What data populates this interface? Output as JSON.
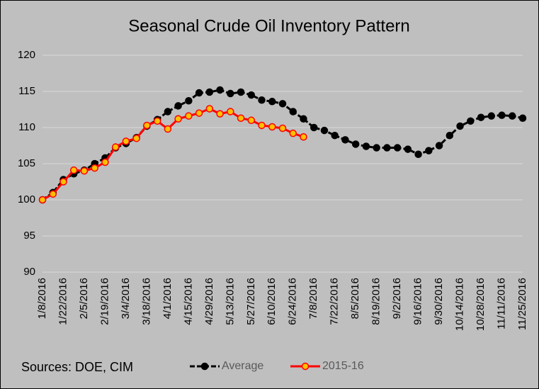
{
  "chart_data": {
    "type": "line",
    "title": "Seasonal Crude Oil Inventory Pattern",
    "annotation": "Sources:  DOE, CIM",
    "categories": [
      "1/8/2016",
      null,
      "1/22/2016",
      null,
      "2/5/2016",
      null,
      "2/19/2016",
      null,
      "3/4/2016",
      null,
      "3/18/2016",
      null,
      "4/1/2016",
      null,
      "4/15/2016",
      null,
      "4/29/2016",
      null,
      "5/13/2016",
      null,
      "5/27/2016",
      null,
      "6/10/2016",
      null,
      "6/24/2016",
      null,
      "7/8/2016",
      null,
      "7/22/2016",
      null,
      "8/5/2016",
      null,
      "8/19/2016",
      null,
      "9/2/2016",
      null,
      "9/16/2016",
      null,
      "9/30/2016",
      null,
      "10/14/2016",
      null,
      "10/28/2016",
      null,
      "11/11/2016",
      null,
      "11/25/2016"
    ],
    "series": [
      {
        "name": "Average",
        "color": "#000000",
        "marker_fill": "#000000",
        "line_style": "dashed",
        "values": [
          100,
          101.0,
          102.8,
          103.6,
          104.1,
          105.0,
          105.8,
          107.2,
          107.8,
          108.6,
          110.2,
          111.1,
          112.2,
          113.0,
          113.7,
          114.8,
          114.9,
          115.2,
          114.7,
          114.9,
          114.5,
          113.8,
          113.6,
          113.3,
          112.2,
          111.2,
          110.0,
          109.6,
          108.9,
          108.3,
          107.7,
          107.4,
          107.2,
          107.2,
          107.2,
          107.0,
          106.3,
          106.8,
          107.5,
          108.9,
          110.2,
          110.9,
          111.4,
          111.6,
          111.7,
          111.6,
          111.3
        ]
      },
      {
        "name": "2015-16",
        "color": "#ff0000",
        "marker_fill": "#ffc000",
        "line_style": "solid",
        "values": [
          100,
          100.8,
          102.5,
          104.1,
          104.0,
          104.4,
          105.2,
          107.3,
          108.1,
          108.5,
          110.3,
          110.9,
          109.8,
          111.2,
          111.6,
          112.0,
          112.6,
          111.9,
          112.2,
          111.3,
          111.0,
          110.3,
          110.1,
          109.9,
          109.2,
          108.7,
          null,
          null,
          null,
          null,
          null,
          null,
          null,
          null,
          null,
          null,
          null,
          null,
          null,
          null,
          null,
          null,
          null,
          null,
          null,
          null,
          null
        ]
      }
    ],
    "ylim": [
      90,
      120
    ],
    "yticks": [
      90,
      95,
      100,
      105,
      110,
      115,
      120
    ],
    "grid": true,
    "legend": "bottom"
  }
}
